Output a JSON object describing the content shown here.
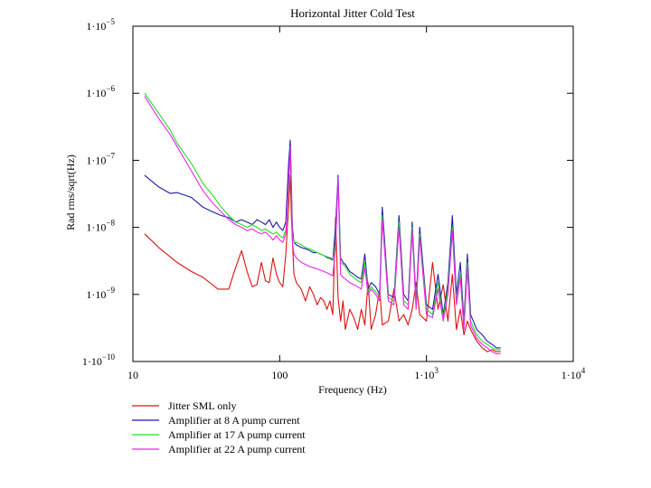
{
  "chart_data": {
    "type": "line",
    "title": "Horizontal Jitter Cold Test",
    "xlabel": "Frequency (Hz)",
    "ylabel": "Rad rms/sqrt(Hz)",
    "xscale": "log",
    "yscale": "log",
    "xlim": [
      10,
      10000
    ],
    "ylim": [
      1e-10,
      1e-05
    ],
    "grid": false,
    "legend_position": "below",
    "x_ticks": [
      {
        "value": 10,
        "base": "10",
        "exp": ""
      },
      {
        "value": 100,
        "base": "100",
        "exp": ""
      },
      {
        "value": 1000,
        "base": "1·10",
        "exp": "3"
      },
      {
        "value": 10000,
        "base": "1·10",
        "exp": "4"
      }
    ],
    "y_ticks": [
      {
        "value": 1e-05,
        "base": "1·10",
        "exp": "−5"
      },
      {
        "value": 1e-06,
        "base": "1·10",
        "exp": "−6"
      },
      {
        "value": 1e-07,
        "base": "1·10",
        "exp": "−7"
      },
      {
        "value": 1e-08,
        "base": "1·10",
        "exp": "−8"
      },
      {
        "value": 1e-09,
        "base": "1·10",
        "exp": "−9"
      },
      {
        "value": 1e-10,
        "base": "1·10",
        "exp": "−10"
      }
    ],
    "series": [
      {
        "name": "Jitter SML only",
        "color": "#dd1111",
        "x": [
          12,
          15,
          20,
          25,
          30,
          38,
          45,
          50,
          55,
          60,
          65,
          70,
          75,
          80,
          85,
          90,
          95,
          100,
          105,
          110,
          115,
          118,
          120,
          125,
          130,
          140,
          150,
          160,
          170,
          180,
          190,
          200,
          210,
          220,
          230,
          240,
          250,
          260,
          270,
          280,
          300,
          320,
          340,
          360,
          380,
          400,
          420,
          450,
          480,
          500,
          550,
          600,
          650,
          700,
          750,
          800,
          850,
          900,
          1000,
          1100,
          1200,
          1300,
          1400,
          1500,
          1600,
          1700,
          1800,
          1900,
          2000,
          2200,
          2400,
          2600,
          2800,
          3000,
          3200
        ],
        "y": [
          8e-09,
          5e-09,
          3e-09,
          2.2e-09,
          1.8e-09,
          1.2e-09,
          1.2e-09,
          2.5e-09,
          4.5e-09,
          2.2e-09,
          1.3e-09,
          1.4e-09,
          3e-09,
          1.6e-09,
          1.5e-09,
          3.5e-09,
          2e-09,
          1.5e-09,
          1.3e-09,
          4e-09,
          2e-08,
          6e-08,
          1.5e-08,
          2e-09,
          1.5e-09,
          1.2e-09,
          8e-10,
          1.3e-09,
          1e-09,
          7e-10,
          9e-10,
          8e-10,
          6e-10,
          8e-10,
          5e-10,
          1.4e-08,
          9e-10,
          4e-10,
          8e-10,
          3e-10,
          6e-10,
          4.5e-10,
          3e-10,
          6e-10,
          3.5e-10,
          1.5e-09,
          3e-10,
          5e-10,
          1.2e-09,
          3.5e-10,
          4e-10,
          1.2e-09,
          4e-10,
          5e-10,
          3.5e-10,
          6e-10,
          1.5e-09,
          5e-10,
          4e-10,
          3e-09,
          6e-10,
          1.4e-09,
          4e-10,
          2e-09,
          3e-10,
          6e-10,
          2.5e-10,
          4e-10,
          3e-10,
          2e-10,
          1.6e-10,
          1.4e-10,
          1.5e-10,
          1.4e-10,
          1.4e-10
        ]
      },
      {
        "name": "Amplifier at 8 A pump current",
        "color": "#1a1aa8",
        "x": [
          12,
          15,
          18,
          20,
          25,
          30,
          35,
          40,
          45,
          50,
          55,
          60,
          65,
          70,
          75,
          80,
          85,
          90,
          95,
          100,
          105,
          110,
          115,
          118,
          120,
          122,
          125,
          130,
          140,
          150,
          160,
          170,
          180,
          190,
          200,
          210,
          220,
          230,
          240,
          250,
          260,
          270,
          280,
          300,
          320,
          340,
          360,
          380,
          400,
          420,
          450,
          480,
          500,
          550,
          600,
          650,
          700,
          750,
          800,
          850,
          900,
          1000,
          1100,
          1200,
          1300,
          1400,
          1500,
          1600,
          1700,
          1800,
          1900,
          2000,
          2200,
          2400,
          2600,
          2800,
          3000,
          3200
        ],
        "y": [
          6e-08,
          4e-08,
          3.2e-08,
          3.3e-08,
          2.8e-08,
          2e-08,
          1.7e-08,
          1.5e-08,
          1.4e-08,
          1.2e-08,
          1.3e-08,
          1.2e-08,
          1.1e-08,
          1.3e-08,
          1.2e-08,
          1.1e-08,
          1.3e-08,
          1e-08,
          1.2e-08,
          1e-08,
          9e-09,
          1.2e-08,
          9e-08,
          2e-07,
          5e-08,
          1e-08,
          6e-09,
          5.5e-09,
          5e-09,
          4.8e-09,
          4.5e-09,
          4.2e-09,
          4.2e-09,
          4e-09,
          3.8e-09,
          3.6e-09,
          3.5e-09,
          3.3e-09,
          1e-08,
          6e-08,
          3.5e-09,
          3e-09,
          2.8e-09,
          2.2e-09,
          2e-09,
          1.8e-09,
          1.7e-09,
          4e-09,
          1.2e-09,
          1.5e-09,
          1.3e-09,
          1e-09,
          2e-08,
          1e-09,
          9e-10,
          1.5e-08,
          1e-09,
          8e-10,
          1.2e-08,
          8e-10,
          1e-08,
          7e-10,
          6e-10,
          2e-09,
          5e-10,
          1.5e-09,
          1.5e-08,
          1e-09,
          3e-09,
          4e-10,
          4e-09,
          5e-10,
          3e-10,
          2.5e-10,
          2e-10,
          1.8e-10,
          1.6e-10,
          1.6e-10
        ]
      },
      {
        "name": "Amplifier at 17 A pump current",
        "color": "#22dd22",
        "x": [
          12,
          15,
          18,
          20,
          25,
          30,
          35,
          40,
          45,
          50,
          55,
          60,
          65,
          70,
          75,
          80,
          85,
          90,
          95,
          100,
          105,
          110,
          115,
          118,
          120,
          122,
          125,
          130,
          140,
          150,
          160,
          170,
          180,
          190,
          200,
          210,
          220,
          230,
          240,
          250,
          260,
          270,
          280,
          300,
          320,
          340,
          360,
          380,
          400,
          420,
          450,
          480,
          500,
          550,
          600,
          650,
          700,
          750,
          800,
          850,
          900,
          1000,
          1100,
          1200,
          1300,
          1400,
          1500,
          1600,
          1700,
          1800,
          1900,
          2000,
          2200,
          2400,
          2600,
          2800,
          3000,
          3200
        ],
        "y": [
          1e-06,
          5e-07,
          2.8e-07,
          1.8e-07,
          9e-08,
          4.5e-08,
          3e-08,
          2e-08,
          1.5e-08,
          1.2e-08,
          1.1e-08,
          1e-08,
          1.1e-08,
          1e-08,
          9e-09,
          9.5e-09,
          8.5e-09,
          8e-09,
          8.5e-09,
          7.5e-09,
          7e-09,
          9e-09,
          4e-08,
          1.2e-07,
          3e-08,
          8e-09,
          6e-09,
          6e-09,
          5.5e-09,
          5e-09,
          4.8e-09,
          4.5e-09,
          4.2e-09,
          4e-09,
          3.8e-09,
          3.5e-09,
          3.4e-09,
          3.2e-09,
          6e-09,
          5e-08,
          3e-09,
          2.8e-09,
          2.6e-09,
          2e-09,
          1.8e-09,
          1.6e-09,
          1.5e-09,
          3e-09,
          1.1e-09,
          1.3e-09,
          1.1e-09,
          9e-10,
          1.5e-08,
          9e-10,
          8e-10,
          1.2e-08,
          8e-10,
          7e-10,
          1e-08,
          7e-10,
          8e-09,
          6e-10,
          5e-10,
          1.5e-09,
          4.5e-10,
          1.2e-09,
          1e-08,
          8e-10,
          2e-09,
          3.5e-10,
          3e-09,
          4e-10,
          2.5e-10,
          2e-10,
          1.8e-10,
          1.6e-10,
          1.5e-10,
          1.5e-10
        ]
      },
      {
        "name": "Amplifier at 22 A pump current",
        "color": "#ee22ee",
        "x": [
          12,
          15,
          18,
          20,
          25,
          30,
          35,
          40,
          45,
          50,
          55,
          60,
          65,
          70,
          75,
          80,
          85,
          90,
          95,
          100,
          105,
          110,
          115,
          118,
          120,
          122,
          125,
          130,
          140,
          150,
          160,
          170,
          180,
          190,
          200,
          210,
          220,
          230,
          240,
          250,
          260,
          270,
          280,
          300,
          320,
          340,
          360,
          380,
          400,
          420,
          450,
          480,
          500,
          550,
          600,
          650,
          700,
          750,
          800,
          850,
          900,
          1000,
          1100,
          1200,
          1300,
          1400,
          1500,
          1600,
          1700,
          1800,
          1900,
          2000,
          2200,
          2400,
          2600,
          2800,
          3000,
          3200
        ],
        "y": [
          9e-07,
          4.2e-07,
          2.4e-07,
          1.6e-07,
          7e-08,
          3.5e-08,
          2.3e-08,
          1.7e-08,
          1.3e-08,
          1.1e-08,
          1e-08,
          9e-09,
          9.5e-09,
          8.5e-09,
          8e-09,
          8.5e-09,
          7.5e-09,
          6.5e-09,
          7.5e-09,
          6.5e-09,
          6e-09,
          8e-09,
          5e-08,
          1.6e-07,
          3.5e-08,
          6e-09,
          4e-09,
          3.5e-09,
          3e-09,
          2.8e-09,
          2.6e-09,
          2.5e-09,
          2.4e-09,
          2.3e-09,
          2.2e-09,
          2.1e-09,
          2e-09,
          1.9e-09,
          5e-09,
          5.5e-08,
          2e-09,
          1.8e-09,
          1.7e-09,
          1.5e-09,
          1.4e-09,
          1.3e-09,
          1.2e-09,
          2.5e-09,
          1e-09,
          1.2e-09,
          1e-09,
          8e-10,
          1.3e-08,
          8e-10,
          7e-10,
          1e-08,
          7e-10,
          6e-10,
          9e-09,
          6e-10,
          7e-09,
          5e-10,
          4.5e-10,
          1.2e-09,
          4e-10,
          1e-09,
          9e-09,
          7e-10,
          1.8e-09,
          3e-10,
          2.5e-09,
          3.5e-10,
          2.2e-10,
          1.8e-10,
          1.6e-10,
          1.4e-10,
          1.3e-10,
          1.3e-10
        ]
      }
    ]
  }
}
